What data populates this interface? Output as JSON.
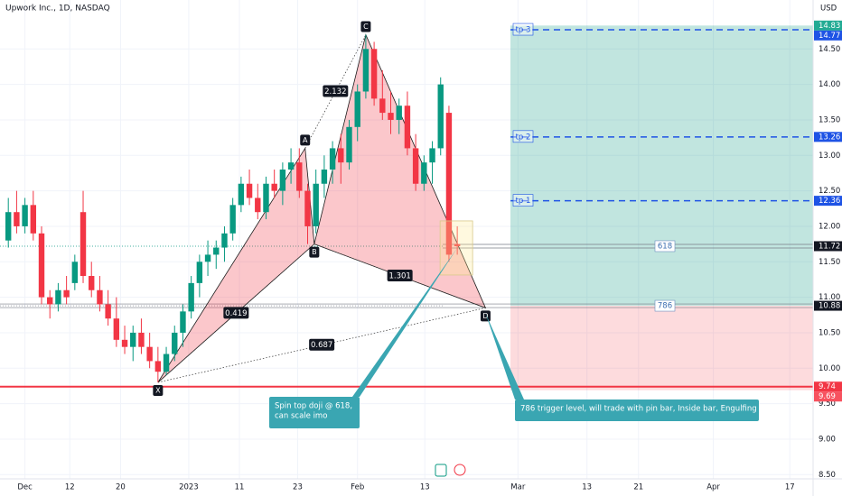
{
  "chart_data": {
    "type": "candlestick",
    "title": "Upwork Inc., 1D, NASDAQ",
    "currency": "USD",
    "x": [
      0,
      1,
      2,
      3,
      4,
      5,
      6,
      7,
      8,
      9,
      10,
      11,
      12,
      13,
      14,
      15,
      16,
      17,
      18,
      19,
      20,
      21,
      22,
      23,
      24,
      25,
      26,
      27,
      28,
      29,
      30,
      31,
      32,
      33,
      34,
      35,
      36,
      37,
      38,
      39,
      40,
      41,
      42,
      43,
      44,
      45,
      46,
      47,
      48,
      49,
      50,
      51,
      52,
      53,
      54
    ],
    "open": [
      11.8,
      12.2,
      12.0,
      12.3,
      11.9,
      11.0,
      10.9,
      11.1,
      11.2,
      12.2,
      11.3,
      11.1,
      10.9,
      10.7,
      10.4,
      10.3,
      10.5,
      10.3,
      10.1,
      9.95,
      10.2,
      10.5,
      10.8,
      11.2,
      11.5,
      11.6,
      11.7,
      11.9,
      12.3,
      12.6,
      12.4,
      12.2,
      12.6,
      12.5,
      12.8,
      12.9,
      12.5,
      12.0,
      12.6,
      12.8,
      13.1,
      12.9,
      13.4,
      13.9,
      14.5,
      13.8,
      13.6,
      13.5,
      13.7,
      13.1,
      12.6,
      12.9,
      13.1,
      13.6,
      11.75
    ],
    "high": [
      12.4,
      12.5,
      12.4,
      12.5,
      12.0,
      11.1,
      11.2,
      11.3,
      11.6,
      12.5,
      11.5,
      11.3,
      11.1,
      11.0,
      10.6,
      10.6,
      10.7,
      10.5,
      10.3,
      10.3,
      10.6,
      10.9,
      11.3,
      11.6,
      11.8,
      11.8,
      12.0,
      12.4,
      12.7,
      12.8,
      12.6,
      12.7,
      12.8,
      12.9,
      13.1,
      13.1,
      12.6,
      12.8,
      13.0,
      13.2,
      13.3,
      13.5,
      14.0,
      14.7,
      14.6,
      14.2,
      13.9,
      13.8,
      13.9,
      13.3,
      13.0,
      13.2,
      14.1,
      13.7,
      12.0
    ],
    "low": [
      11.7,
      11.9,
      11.9,
      11.8,
      10.9,
      10.7,
      10.8,
      10.9,
      11.1,
      11.2,
      11.0,
      10.8,
      10.6,
      10.3,
      10.2,
      10.1,
      10.2,
      10.0,
      9.8,
      9.9,
      10.1,
      10.3,
      10.7,
      11.0,
      11.3,
      11.4,
      11.5,
      11.8,
      12.2,
      12.3,
      12.1,
      12.1,
      12.4,
      12.3,
      12.6,
      12.4,
      11.75,
      11.9,
      12.4,
      12.6,
      12.6,
      12.8,
      13.2,
      13.8,
      13.7,
      13.5,
      13.3,
      13.3,
      13.0,
      12.5,
      12.5,
      12.6,
      13.0,
      11.5,
      11.6
    ],
    "close": [
      12.2,
      12.0,
      12.3,
      11.9,
      11.0,
      10.9,
      11.1,
      11.0,
      11.5,
      11.3,
      11.1,
      10.9,
      10.7,
      10.4,
      10.3,
      10.5,
      10.3,
      10.1,
      9.95,
      10.2,
      10.5,
      10.8,
      11.2,
      11.5,
      11.6,
      11.7,
      11.9,
      12.3,
      12.6,
      12.4,
      12.2,
      12.6,
      12.5,
      12.8,
      12.9,
      12.5,
      12.0,
      12.6,
      12.8,
      13.1,
      12.9,
      13.4,
      13.9,
      14.5,
      13.8,
      13.6,
      13.5,
      13.7,
      13.1,
      12.6,
      12.9,
      13.1,
      14.0,
      11.6,
      11.72
    ],
    "up_color": "#089981",
    "down_color": "#f23645",
    "xlim": [
      -1,
      96.8
    ],
    "xticks": [
      {
        "value": 2,
        "label": "Dec"
      },
      {
        "value": 7.4,
        "label": "12"
      },
      {
        "value": 13.5,
        "label": "20"
      },
      {
        "value": 21.7,
        "label": "2023"
      },
      {
        "value": 27.8,
        "label": "11"
      },
      {
        "value": 34.8,
        "label": "23"
      },
      {
        "value": 42,
        "label": "Feb"
      },
      {
        "value": 50.1,
        "label": "13"
      },
      {
        "value": 61.3,
        "label": "Mar"
      },
      {
        "value": 69.6,
        "label": "13"
      },
      {
        "value": 75.8,
        "label": "21"
      },
      {
        "value": 84.8,
        "label": "Apr"
      },
      {
        "value": 94,
        "label": "17"
      }
    ],
    "ylim": [
      8.44,
      15.19
    ],
    "yticks": [
      {
        "value": 8.5,
        "label": "8.50"
      },
      {
        "value": 9,
        "label": "9.00"
      },
      {
        "value": 9.5,
        "label": "9.50"
      },
      {
        "value": 10,
        "label": "10.00"
      },
      {
        "value": 10.5,
        "label": "10.50"
      },
      {
        "value": 11,
        "label": "11.00"
      },
      {
        "value": 11.5,
        "label": "11.50"
      },
      {
        "value": 12,
        "label": "12.00"
      },
      {
        "value": 12.5,
        "label": "12.50"
      },
      {
        "value": 13,
        "label": "13.00"
      },
      {
        "value": 13.5,
        "label": "13.50"
      },
      {
        "value": 14,
        "label": "14.00"
      },
      {
        "value": 14.5,
        "label": "14.50"
      }
    ],
    "position": {
      "entry": 10.88,
      "target": 14.83,
      "stop": 9.69
    },
    "targets": [
      {
        "label": "tp 1",
        "value": 12.36
      },
      {
        "label": "tp 2",
        "value": 13.26
      },
      {
        "label": "tp 3",
        "value": 14.77
      }
    ],
    "fib_levels": [
      {
        "label": "618",
        "value": 11.72
      },
      {
        "label": "786",
        "value": 10.88
      }
    ],
    "support": 9.74,
    "pattern": [
      {
        "label": "X",
        "x": 18,
        "y": 9.8
      },
      {
        "label": "A",
        "x": 35.7,
        "y": 13.1
      },
      {
        "label": "B",
        "x": 36.8,
        "y": 11.75
      },
      {
        "label": "C",
        "x": 43,
        "y": 14.7
      },
      {
        "label": "D",
        "x": 57.4,
        "y": 10.85
      }
    ],
    "ratios": [
      {
        "label": "2.132",
        "from": "A",
        "to": "C"
      },
      {
        "label": "0.419",
        "from": "X",
        "to": "B"
      },
      {
        "label": "1.301",
        "from": "B",
        "to": "D"
      },
      {
        "label": "0.687",
        "from": "X",
        "to": "D"
      }
    ],
    "notes": [
      [
        "Spin top doji @ 618,",
        "can scale imo"
      ],
      [
        "786 trigger level, will trade with pin bar, Inside bar, Engulfing bar"
      ]
    ]
  }
}
